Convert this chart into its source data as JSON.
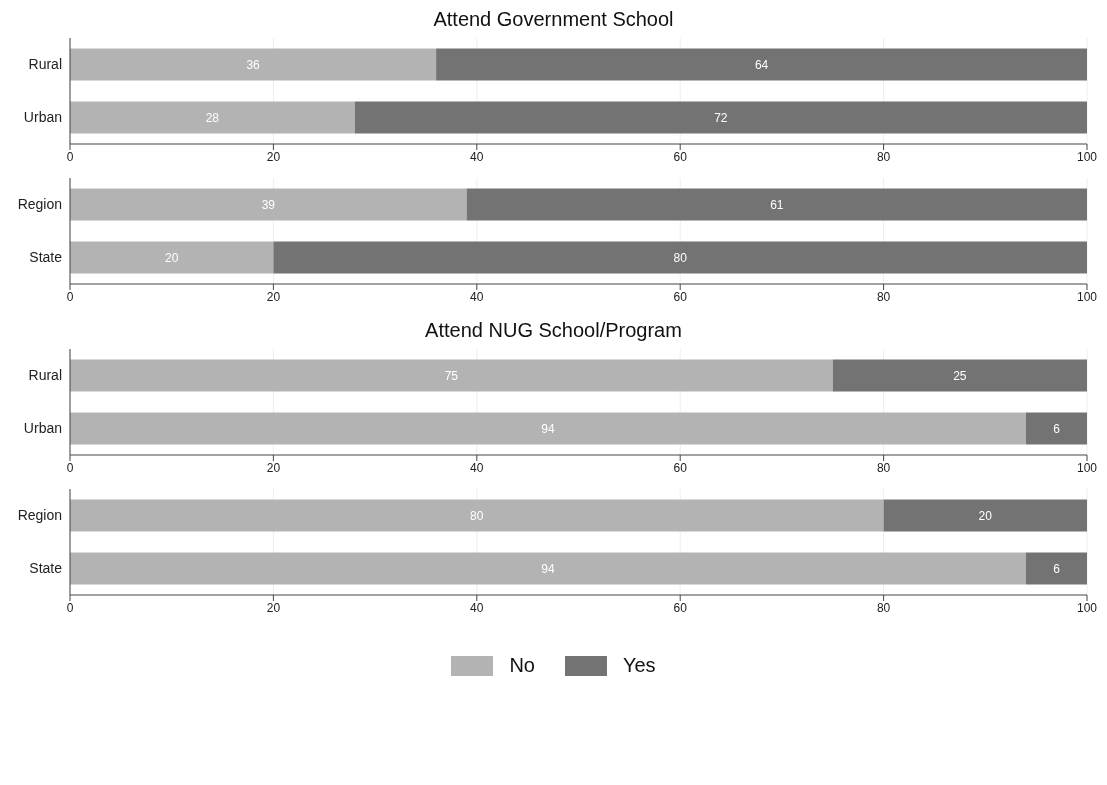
{
  "chart_data": [
    {
      "type": "bar",
      "title": "Attend Government School",
      "orientation": "horizontal",
      "stacked": true,
      "categories": [
        "Rural",
        "Urban"
      ],
      "series": [
        {
          "color": "#b3b3b3",
          "values": [
            36,
            28
          ]
        },
        {
          "color": "#737373",
          "values": [
            64,
            72
          ]
        }
      ],
      "xlim": [
        0,
        100
      ],
      "xticks": [
        0,
        20,
        40,
        60,
        80,
        100
      ],
      "grid": "x",
      "data_labels": true,
      "legend": false
    },
    {
      "type": "bar",
      "orientation": "horizontal",
      "stacked": true,
      "categories": [
        "Region",
        "State"
      ],
      "series": [
        {
          "color": "#b3b3b3",
          "values": [
            39,
            20
          ]
        },
        {
          "color": "#737373",
          "values": [
            61,
            80
          ]
        }
      ],
      "xlim": [
        0,
        100
      ],
      "xticks": [
        0,
        20,
        40,
        60,
        80,
        100
      ],
      "grid": "x",
      "data_labels": true,
      "legend": false
    },
    {
      "type": "bar",
      "title": "Attend NUG School/Program",
      "orientation": "horizontal",
      "stacked": true,
      "categories": [
        "Rural",
        "Urban"
      ],
      "series": [
        {
          "color": "#b3b3b3",
          "values": [
            75,
            94
          ]
        },
        {
          "color": "#737373",
          "values": [
            25,
            6
          ]
        }
      ],
      "xlim": [
        0,
        100
      ],
      "xticks": [
        0,
        20,
        40,
        60,
        80,
        100
      ],
      "grid": "x",
      "data_labels": true,
      "legend": false
    },
    {
      "type": "bar",
      "orientation": "horizontal",
      "stacked": true,
      "categories": [
        "Region",
        "State"
      ],
      "series": [
        {
          "name": "No",
          "color": "#b3b3b3",
          "values": [
            80,
            94
          ]
        },
        {
          "name": "Yes",
          "color": "#737373",
          "values": [
            20,
            6
          ]
        }
      ],
      "xlim": [
        0,
        100
      ],
      "xticks": [
        0,
        20,
        40,
        60,
        80,
        100
      ],
      "grid": "x",
      "data_labels": true,
      "legend": "bottom"
    }
  ]
}
